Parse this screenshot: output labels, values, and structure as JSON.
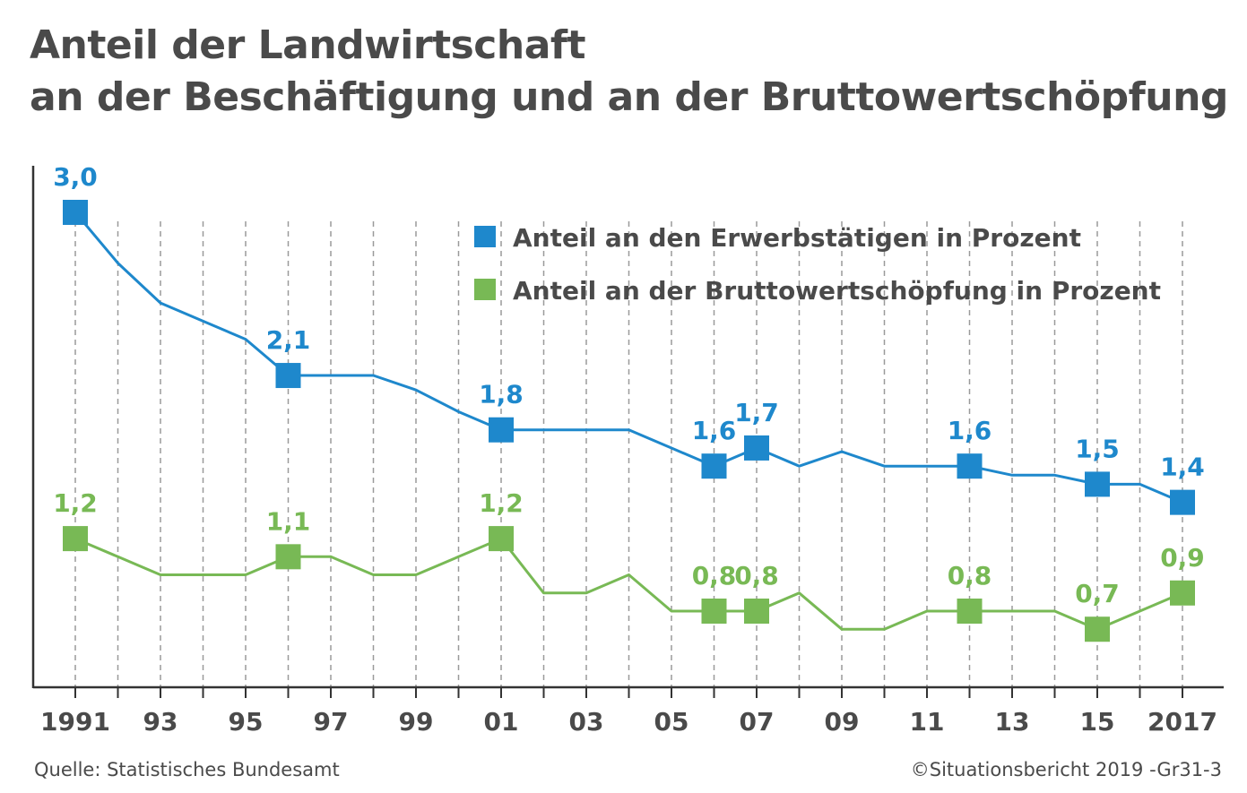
{
  "title": {
    "line1": "Anteil der Landwirtschaft",
    "line2": "an der Beschäftigung und an der Bruttowertschöpfung"
  },
  "footer": {
    "source": "Quelle: Statistisches Bundesamt",
    "copyright": "©Situationsbericht 2019 -Gr31-3"
  },
  "colors": {
    "blue": "#1e88cc",
    "green": "#78b955",
    "axis": "#333333",
    "grid": "#9a9a9a",
    "text": "#4a4a4a"
  },
  "chart_data": {
    "type": "line",
    "x": [
      1991,
      1992,
      1993,
      1994,
      1995,
      1996,
      1997,
      1998,
      1999,
      2000,
      2001,
      2002,
      2003,
      2004,
      2005,
      2006,
      2007,
      2008,
      2009,
      2010,
      2011,
      2012,
      2013,
      2014,
      2015,
      2016,
      2017
    ],
    "x_tick_labels": [
      "1991",
      "93",
      "95",
      "97",
      "99",
      "01",
      "03",
      "05",
      "07",
      "09",
      "11",
      "13",
      "15",
      "2017"
    ],
    "x_tick_years": [
      1991,
      1993,
      1995,
      1997,
      1999,
      2001,
      2003,
      2005,
      2007,
      2009,
      2011,
      2013,
      2015,
      2017
    ],
    "xlim": [
      1991,
      2017
    ],
    "ylim": [
      0,
      3.0
    ],
    "grid": "vertical dashed",
    "legend_position": "top-right",
    "series": [
      {
        "name": "Anteil an den Erwerbstätigen in Prozent",
        "color": "#1e88cc",
        "values": [
          3.0,
          2.72,
          2.5,
          2.4,
          2.3,
          2.1,
          2.1,
          2.1,
          2.02,
          1.9,
          1.8,
          1.8,
          1.8,
          1.8,
          1.7,
          1.6,
          1.7,
          1.6,
          1.68,
          1.6,
          1.6,
          1.6,
          1.55,
          1.55,
          1.5,
          1.5,
          1.4
        ],
        "labeled": [
          {
            "x": 1991,
            "label": "3,0"
          },
          {
            "x": 1996,
            "label": "2,1"
          },
          {
            "x": 2001,
            "label": "1,8"
          },
          {
            "x": 2006,
            "label": "1,6"
          },
          {
            "x": 2007,
            "label": "1,7"
          },
          {
            "x": 2012,
            "label": "1,6"
          },
          {
            "x": 2015,
            "label": "1,5"
          },
          {
            "x": 2017,
            "label": "1,4"
          }
        ]
      },
      {
        "name": "Anteil an der Bruttowertschöpfung in Prozent",
        "color": "#78b955",
        "values": [
          1.2,
          1.1,
          1.0,
          1.0,
          1.0,
          1.1,
          1.1,
          1.0,
          1.0,
          1.1,
          1.2,
          0.9,
          0.9,
          1.0,
          0.8,
          0.8,
          0.8,
          0.9,
          0.7,
          0.7,
          0.8,
          0.8,
          0.8,
          0.8,
          0.7,
          0.8,
          0.9
        ],
        "labeled": [
          {
            "x": 1991,
            "label": "1,2"
          },
          {
            "x": 1996,
            "label": "1,1"
          },
          {
            "x": 2001,
            "label": "1,2"
          },
          {
            "x": 2006,
            "label": "0,8"
          },
          {
            "x": 2007,
            "label": "0,8"
          },
          {
            "x": 2012,
            "label": "0,8"
          },
          {
            "x": 2015,
            "label": "0,7"
          },
          {
            "x": 2017,
            "label": "0,9"
          }
        ]
      }
    ]
  }
}
